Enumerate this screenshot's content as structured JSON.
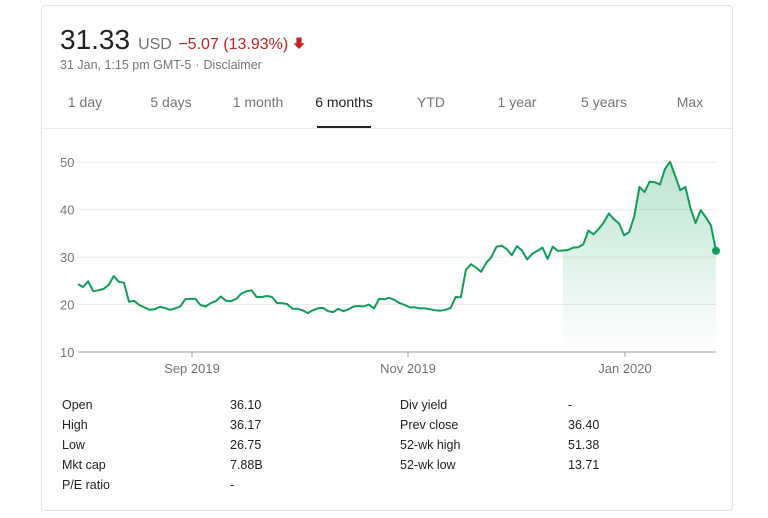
{
  "quote": {
    "price": "31.33",
    "currency": "USD",
    "change": "−5.07 (13.93%)",
    "timestamp": "31 Jan, 1:15 pm GMT-5",
    "separator": "·",
    "disclaimer": "Disclaimer",
    "change_color": "#c5221f"
  },
  "tabs": [
    {
      "label": "1 day",
      "active": false
    },
    {
      "label": "5 days",
      "active": false
    },
    {
      "label": "1 month",
      "active": false
    },
    {
      "label": "6 months",
      "active": true
    },
    {
      "label": "YTD",
      "active": false
    },
    {
      "label": "1 year",
      "active": false
    },
    {
      "label": "5 years",
      "active": false
    },
    {
      "label": "Max",
      "active": false
    }
  ],
  "chart_data": {
    "type": "area",
    "x_ticks": [
      "Sep 2019",
      "Nov 2019",
      "Jan 2020"
    ],
    "y_ticks": [
      10,
      20,
      30,
      40,
      50
    ],
    "ylim": [
      10,
      53
    ],
    "line_color": "#0f9d58",
    "grid": true,
    "values": [
      24.3,
      23.7,
      24.9,
      22.8,
      23.0,
      23.3,
      24.1,
      26.0,
      24.8,
      24.6,
      20.6,
      20.8,
      19.9,
      19.4,
      18.9,
      19.0,
      19.5,
      19.3,
      18.9,
      19.2,
      19.6,
      21.1,
      21.2,
      21.2,
      19.9,
      19.6,
      20.3,
      20.7,
      21.7,
      20.8,
      20.7,
      21.2,
      22.3,
      22.8,
      23.0,
      21.6,
      21.6,
      21.8,
      21.6,
      20.3,
      20.3,
      20.1,
      19.1,
      19.1,
      18.8,
      18.2,
      18.8,
      19.2,
      19.3,
      18.6,
      18.4,
      19.1,
      18.6,
      19.0,
      19.6,
      19.7,
      19.6,
      20.0,
      19.2,
      21.2,
      21.1,
      21.4,
      21.0,
      20.3,
      19.9,
      19.4,
      19.4,
      19.2,
      19.2,
      19.0,
      18.8,
      18.7,
      18.9,
      19.3,
      21.6,
      21.5,
      27.3,
      28.5,
      27.8,
      26.9,
      28.8,
      30.0,
      32.2,
      32.4,
      31.7,
      30.4,
      32.3,
      31.4,
      29.5,
      30.7,
      31.3,
      32.0,
      29.6,
      32.2,
      31.3,
      31.4,
      31.5,
      32.0,
      32.1,
      32.7,
      35.6,
      34.8,
      35.9,
      37.3,
      39.2,
      38.0,
      37.1,
      34.6,
      35.3,
      38.6,
      44.8,
      43.7,
      45.9,
      45.8,
      45.3,
      48.6,
      50.1,
      47.1,
      44.1,
      44.8,
      40.3,
      37.2,
      39.9,
      38.4,
      36.7,
      31.33
    ]
  },
  "stats": {
    "left": [
      {
        "label": "Open",
        "value": "36.10"
      },
      {
        "label": "High",
        "value": "36.17"
      },
      {
        "label": "Low",
        "value": "26.75"
      },
      {
        "label": "Mkt cap",
        "value": "7.88B"
      },
      {
        "label": "P/E ratio",
        "value": "-"
      }
    ],
    "right": [
      {
        "label": "Div yield",
        "value": "-"
      },
      {
        "label": "Prev close",
        "value": "36.40"
      },
      {
        "label": "52-wk high",
        "value": "51.38"
      },
      {
        "label": "52-wk low",
        "value": "13.71"
      }
    ]
  }
}
